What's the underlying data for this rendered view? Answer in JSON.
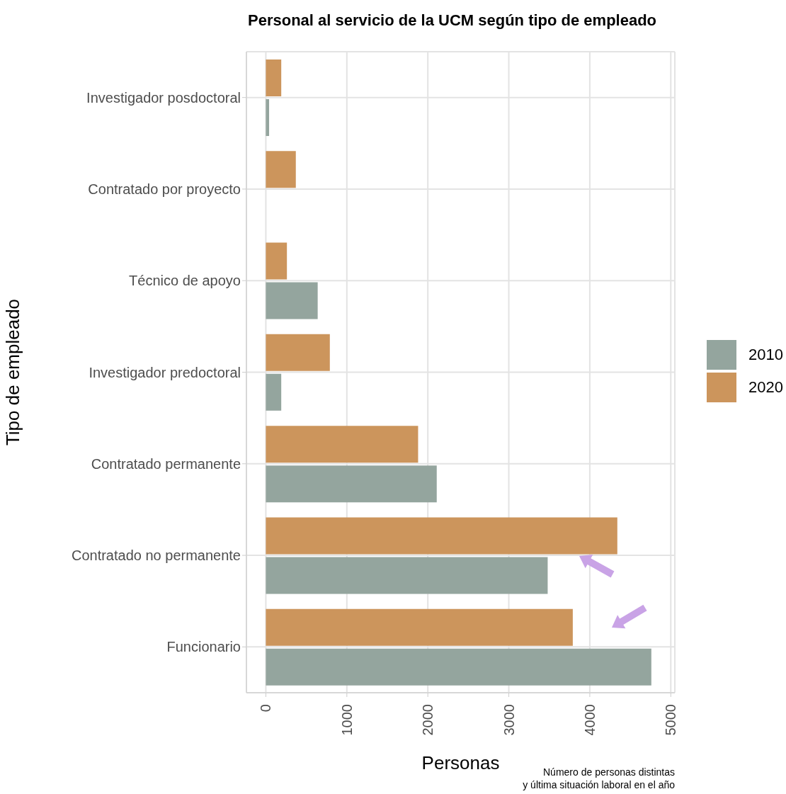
{
  "chart_data": {
    "type": "bar",
    "orientation": "horizontal",
    "title": "Personal al servicio de la UCM según tipo de empleado",
    "xlabel": "Personas",
    "ylabel": "Tipo de empleado",
    "categories": [
      "Investigador posdoctoral",
      "Contratado por proyecto",
      "Técnico de apoyo",
      "Investigador predoctoral",
      "Contratado permanente",
      "Contratado no permanente",
      "Funcionario"
    ],
    "series": [
      {
        "name": "2010",
        "color": "#94a59e",
        "values": [
          40,
          null,
          640,
          190,
          2110,
          3480,
          4760
        ]
      },
      {
        "name": "2020",
        "color": "#cc955c",
        "values": [
          190,
          370,
          260,
          790,
          1880,
          4340,
          3790
        ]
      }
    ],
    "xlim": [
      -240,
      5050
    ],
    "xticks": [
      0,
      1000,
      2000,
      3000,
      4000,
      5000
    ],
    "grid": true,
    "legend": "right",
    "annotations": [
      "Número de personas distintas\ny última situación laboral en el año"
    ]
  }
}
